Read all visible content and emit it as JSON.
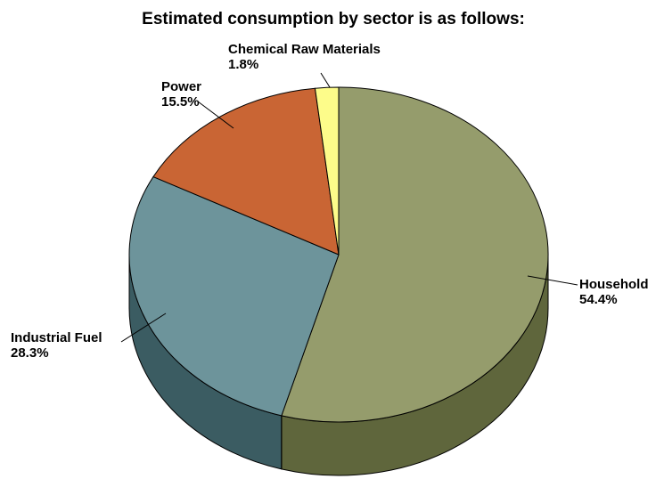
{
  "chart_data": {
    "type": "pie",
    "title": "Estimated consumption by sector is as follows:",
    "slices": [
      {
        "name": "Household",
        "value": 54.4,
        "label": "54.4%",
        "color": "#959c6c",
        "side_color": "#5f663c"
      },
      {
        "name": "Industrial Fuel",
        "value": 28.3,
        "label": "28.3%",
        "color": "#6d949b",
        "side_color": "#3b5c62"
      },
      {
        "name": "Power",
        "value": 15.5,
        "label": "15.5%",
        "color": "#c96534",
        "side_color": "#8a3e1a"
      },
      {
        "name": "Chemical Raw Materials",
        "value": 1.8,
        "label": "1.8%",
        "color": "#fdfc8a",
        "side_color": "#c9c85a"
      }
    ],
    "style": "3d-pie",
    "legend": "none"
  }
}
